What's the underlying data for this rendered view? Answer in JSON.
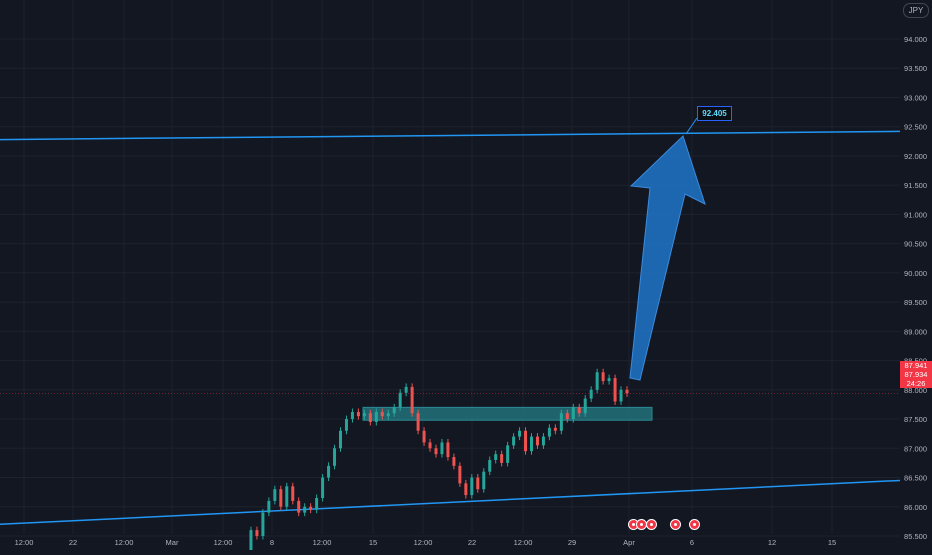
{
  "chart_data": {
    "type": "line",
    "symbol_currency": "JPY",
    "title": "",
    "xlabel": "",
    "ylabel": "",
    "x_axis_ticks": [
      "12:00",
      "22",
      "12:00",
      "Mar",
      "12:00",
      "8",
      "12:00",
      "15",
      "12:00",
      "22",
      "12:00",
      "29",
      "Apr",
      "6",
      "12",
      "15"
    ],
    "y_axis_ticks": [
      "94.000",
      "93.500",
      "93.000",
      "92.500",
      "92.000",
      "91.500",
      "91.000",
      "90.500",
      "90.000",
      "89.500",
      "89.000",
      "88.500",
      "88.000",
      "87.500",
      "87.000",
      "86.500",
      "86.000",
      "85.500"
    ],
    "ylim": [
      85.2,
      94.3
    ],
    "series": [
      {
        "x": [
          0,
          3,
          6,
          9,
          12,
          15,
          18,
          21,
          24,
          27,
          30,
          33,
          36,
          39,
          42,
          45,
          48,
          51,
          54,
          57,
          60,
          63,
          66,
          69,
          72,
          75,
          78,
          81,
          84,
          87,
          90,
          93,
          96,
          99,
          102,
          105,
          108,
          111,
          114,
          117,
          120,
          123,
          126,
          129,
          132,
          135,
          138,
          141,
          144,
          147,
          150,
          153,
          156,
          159,
          162,
          165,
          168,
          171,
          174,
          177,
          180,
          183,
          186,
          189,
          192
        ],
        "values": [
          85.2,
          85.6,
          85.5,
          85.9,
          86.1,
          86.3,
          86.0,
          86.35,
          86.1,
          85.9,
          86.0,
          85.95,
          86.15,
          86.5,
          86.7,
          87.0,
          87.3,
          87.5,
          87.62,
          87.55,
          87.6,
          87.45,
          87.62,
          87.55,
          87.6,
          87.7,
          87.95,
          88.05,
          87.6,
          87.3,
          87.1,
          87.0,
          86.9,
          87.1,
          86.85,
          86.7,
          86.4,
          86.2,
          86.5,
          86.3,
          86.6,
          86.8,
          86.9,
          86.75,
          87.05,
          87.2,
          87.3,
          86.95,
          87.2,
          87.05,
          87.2,
          87.35,
          87.3,
          87.6,
          87.5,
          87.7,
          87.6,
          87.85,
          88.0,
          88.3,
          88.15,
          88.2,
          87.8,
          88.0,
          87.94
        ]
      }
    ],
    "current_price": "87.941",
    "current_price_2": "87.934",
    "countdown": "24:26",
    "target_label": "92.405",
    "support_zone": [
      87.48,
      87.7
    ],
    "upper_trendline": [
      92.28,
      92.42
    ],
    "lower_trendline": [
      85.7,
      86.45
    ],
    "colors": {
      "background": "#131722",
      "grid": "#1e222d",
      "axis_text": "#b2b5be",
      "up": "#26a69a",
      "down": "#ef5350",
      "trendline": "#2196f3",
      "arrow": "#1e6fbd",
      "zone": "#22727a",
      "price_tag": "#f23645"
    }
  },
  "event_icons": [
    "event-marker-icon",
    "event-marker-icon",
    "event-marker-icon",
    "event-marker-icon",
    "event-marker-icon"
  ]
}
